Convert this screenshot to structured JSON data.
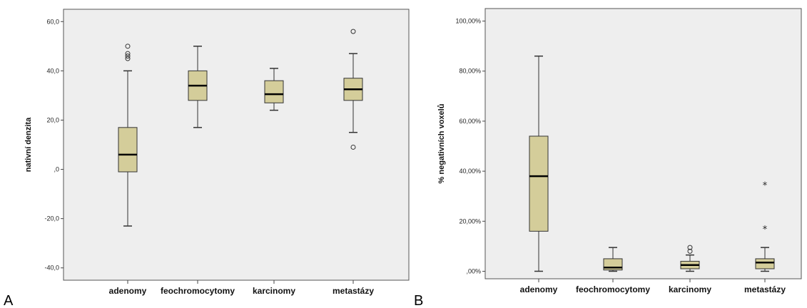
{
  "colors": {
    "plot_bg": "#eeeeee",
    "box_fill": "#d4cd9a",
    "box_stroke": "#333333"
  },
  "chart_data": [
    {
      "type": "box",
      "panel_label": "A",
      "ylabel": "nativní denzita",
      "ylim": [
        -45,
        65
      ],
      "yticks": [
        -40,
        -20,
        0,
        20,
        40,
        60
      ],
      "ytick_labels": [
        "-40,0",
        "-20,0",
        ",0",
        "20,0",
        "40,0",
        "60,0"
      ],
      "grid": false,
      "categories": [
        "adenomy",
        "feochromocytomy",
        "karcinomy",
        "metastázy"
      ],
      "boxes": [
        {
          "category": "adenomy",
          "whisker_low": -23,
          "q1": -1,
          "median": 6,
          "q3": 17,
          "whisker_high": 40,
          "outliers": [
            45,
            46,
            47,
            50
          ],
          "extremes": []
        },
        {
          "category": "feochromocytomy",
          "whisker_low": 17,
          "q1": 28,
          "median": 34,
          "q3": 40,
          "whisker_high": 50,
          "outliers": [],
          "extremes": []
        },
        {
          "category": "karcinomy",
          "whisker_low": 24,
          "q1": 27,
          "median": 30.5,
          "q3": 36,
          "whisker_high": 41,
          "outliers": [],
          "extremes": []
        },
        {
          "category": "metastázy",
          "whisker_low": 15,
          "q1": 28,
          "median": 32.5,
          "q3": 37,
          "whisker_high": 47,
          "outliers": [
            9,
            56
          ],
          "extremes": []
        }
      ]
    },
    {
      "type": "box",
      "panel_label": "B",
      "ylabel": "% negativních voxelů",
      "ylim": [
        -3,
        105
      ],
      "yticks": [
        0,
        20,
        40,
        60,
        80,
        100
      ],
      "ytick_labels": [
        ",00%",
        "20,00%",
        "40,00%",
        "60,00%",
        "80,00%",
        "100,00%"
      ],
      "grid": false,
      "categories": [
        "adenomy",
        "feochromocytomy",
        "karcinomy",
        "metastázy"
      ],
      "boxes": [
        {
          "category": "adenomy",
          "whisker_low": 0,
          "q1": 16,
          "median": 38,
          "q3": 54,
          "whisker_high": 86,
          "outliers": [],
          "extremes": []
        },
        {
          "category": "feochromocytomy",
          "whisker_low": 0,
          "q1": 0.5,
          "median": 1.5,
          "q3": 5,
          "whisker_high": 9.5,
          "outliers": [],
          "extremes": []
        },
        {
          "category": "karcinomy",
          "whisker_low": 0,
          "q1": 1,
          "median": 2.5,
          "q3": 4,
          "whisker_high": 6.5,
          "outliers": [
            8,
            9.5
          ],
          "extremes": []
        },
        {
          "category": "metastázy",
          "whisker_low": 0,
          "q1": 1,
          "median": 3.5,
          "q3": 5,
          "whisker_high": 9.5,
          "outliers": [],
          "extremes": [
            17,
            34.5
          ]
        }
      ]
    }
  ]
}
